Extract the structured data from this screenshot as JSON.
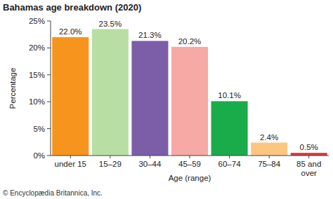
{
  "chart_data": {
    "type": "bar",
    "title": "Bahamas age breakdown (2020)",
    "x_label": "Age (range)",
    "y_label": "Percentage",
    "annotations": [
      "© Encyclopædia Britannica, Inc."
    ],
    "categories": [
      "under 15",
      "15–29",
      "30–44",
      "45–59",
      "60–74",
      "75–84",
      "85 and over"
    ],
    "values": [
      22.0,
      23.5,
      21.3,
      20.2,
      10.1,
      2.4,
      0.5
    ],
    "value_labels": [
      "22.0%",
      "23.5%",
      "21.3%",
      "20.2%",
      "10.1%",
      "2.4%",
      "0.5%"
    ],
    "colors": [
      "#f7941d",
      "#b9dea3",
      "#7b5ea7",
      "#f6a9a5",
      "#1aab4b",
      "#fdc680",
      "#d43a3f"
    ],
    "ylim": [
      0,
      25
    ],
    "yticks": [
      {
        "value": 0,
        "label": "0%"
      },
      {
        "value": 5,
        "label": "5%"
      },
      {
        "value": 10,
        "label": "10%"
      },
      {
        "value": 15,
        "label": "15%"
      },
      {
        "value": 20,
        "label": "20%"
      },
      {
        "value": 25,
        "label": "25%"
      }
    ],
    "grid": false,
    "data_labels": true
  }
}
